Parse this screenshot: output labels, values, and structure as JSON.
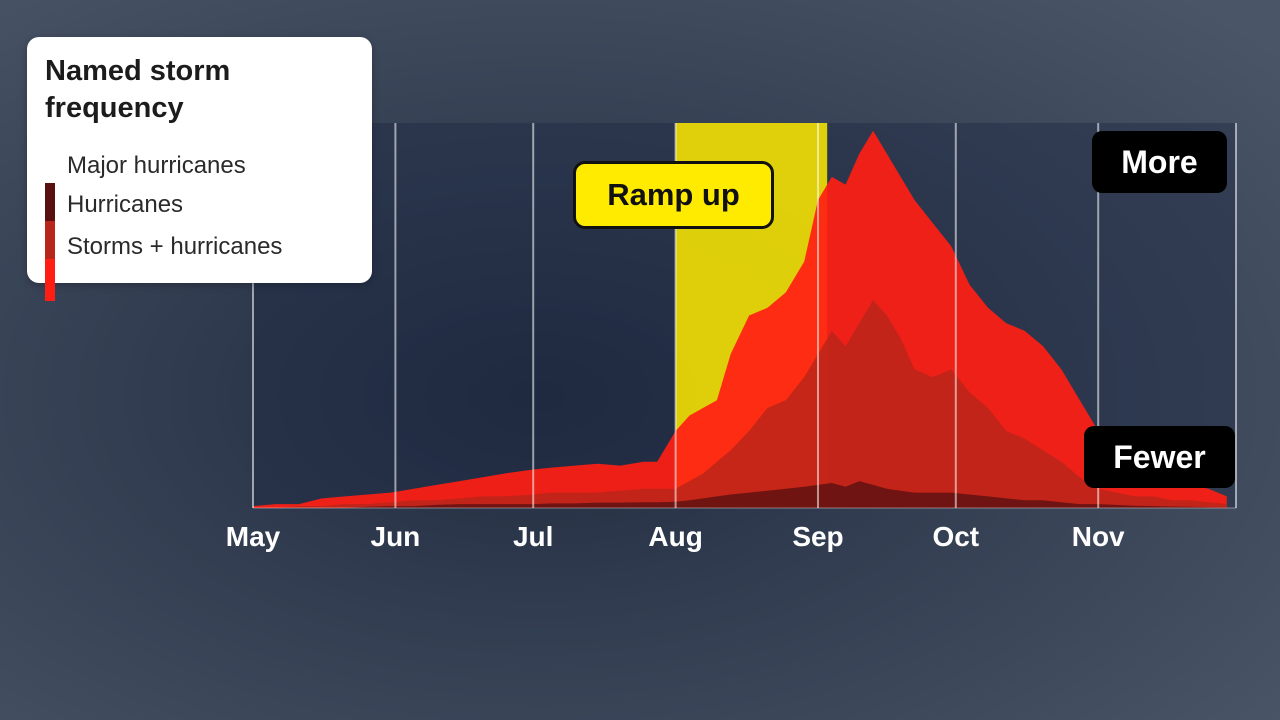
{
  "legend": {
    "title": "Named storm frequency",
    "items": [
      {
        "label": "Major hurricanes",
        "color": "#5a1010"
      },
      {
        "label": "Hurricanes",
        "color": "#b8261a"
      },
      {
        "label": "Storms + hurricanes",
        "color": "#ff1e14"
      }
    ]
  },
  "annotations": {
    "ramp_up": "Ramp up",
    "more": "More",
    "fewer": "Fewer"
  },
  "chart_data": {
    "type": "area",
    "x_unit": "day since May 1",
    "x": [
      0,
      5,
      10,
      15,
      20,
      25,
      30,
      35,
      40,
      45,
      50,
      55,
      61,
      65,
      70,
      75,
      80,
      85,
      88,
      92,
      95,
      98,
      101,
      104,
      108,
      112,
      116,
      120,
      123,
      126,
      129,
      132,
      135,
      138,
      141,
      144,
      148,
      152,
      156,
      160,
      164,
      168,
      172,
      176,
      180,
      184,
      188,
      192,
      196,
      200,
      204,
      208,
      212
    ],
    "x_ticks": [
      {
        "label": "May",
        "day": 0
      },
      {
        "label": "Jun",
        "day": 31
      },
      {
        "label": "Jul",
        "day": 61
      },
      {
        "label": "Aug",
        "day": 92
      },
      {
        "label": "Sep",
        "day": 123
      },
      {
        "label": "Oct",
        "day": 153
      },
      {
        "label": "Nov",
        "day": 184
      }
    ],
    "x_range": [
      0,
      214
    ],
    "y_range": [
      0,
      100
    ],
    "series": [
      {
        "name": "Storms + hurricanes",
        "color": "#ff1e14",
        "values": [
          0.5,
          1,
          1,
          2.5,
          3,
          3.5,
          4,
          5,
          6,
          7,
          8,
          9,
          10,
          10.5,
          11,
          11.5,
          11,
          12,
          12,
          20,
          24,
          26,
          28,
          40,
          50,
          52,
          56,
          64,
          80,
          86,
          84,
          92,
          98,
          92,
          86,
          80,
          74,
          68,
          58,
          52,
          48,
          46,
          42,
          36,
          28,
          20,
          16,
          12,
          10,
          8,
          6,
          5,
          3
        ]
      },
      {
        "name": "Hurricanes",
        "color": "#b8261a",
        "values": [
          0,
          0,
          0.5,
          0.5,
          1,
          1,
          1.5,
          2,
          2,
          2.5,
          3,
          3,
          3.5,
          4,
          4,
          4,
          4.5,
          5,
          5,
          5,
          7,
          9,
          12,
          15,
          20,
          26,
          28,
          34,
          40,
          46,
          42,
          48,
          54,
          50,
          44,
          36,
          34,
          36,
          30,
          26,
          20,
          18,
          15,
          12,
          8,
          5,
          4,
          3,
          3,
          2,
          2,
          1.5,
          1
        ]
      },
      {
        "name": "Major hurricanes",
        "color": "#5a1010",
        "values": [
          0,
          0,
          0,
          0,
          0,
          0.3,
          0.5,
          0.5,
          0.8,
          1,
          1,
          1,
          1,
          1.2,
          1.2,
          1.4,
          1.4,
          1.5,
          1.5,
          1.6,
          2,
          2.5,
          3,
          3.5,
          4,
          4.5,
          5,
          5.5,
          6,
          6.5,
          5.5,
          7,
          6,
          5,
          4.5,
          4,
          4,
          4,
          3.5,
          3,
          2.5,
          2,
          2,
          1.5,
          1,
          1,
          0.8,
          0.6,
          0.5,
          0.4,
          0.3,
          0.2,
          0.1
        ]
      }
    ],
    "highlight_band": {
      "label": "Ramp up",
      "from_day": 92,
      "to_day": 125,
      "color": "#ffeb00"
    }
  }
}
